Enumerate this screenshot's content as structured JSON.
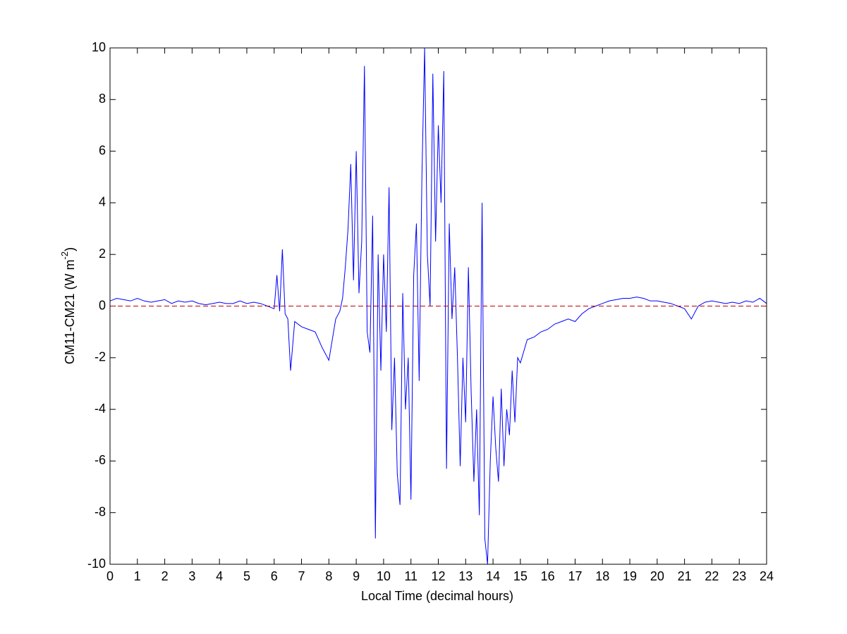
{
  "chart_data": {
    "type": "line",
    "xlabel": "Local Time (decimal hours)",
    "ylabel": {
      "text": "CM11-CM21 (W m",
      "superscript": "-2",
      "suffix": ")"
    },
    "xlim": [
      0,
      24
    ],
    "ylim": [
      -10,
      10
    ],
    "xticks": [
      0,
      1,
      2,
      3,
      4,
      5,
      6,
      7,
      8,
      9,
      10,
      11,
      12,
      13,
      14,
      15,
      16,
      17,
      18,
      19,
      20,
      21,
      22,
      23,
      24
    ],
    "yticks": [
      -10,
      -8,
      -6,
      -4,
      -2,
      0,
      2,
      4,
      6,
      8,
      10
    ],
    "reference_line": {
      "value": 0,
      "color": "#c00000",
      "style": "dashed"
    },
    "x": [
      0,
      0.25,
      0.5,
      0.75,
      1,
      1.25,
      1.5,
      1.75,
      2,
      2.25,
      2.5,
      2.75,
      3,
      3.25,
      3.5,
      3.75,
      4,
      4.25,
      4.5,
      4.75,
      5,
      5.25,
      5.5,
      5.75,
      6,
      6.1,
      6.2,
      6.3,
      6.4,
      6.5,
      6.6,
      6.75,
      7,
      7.25,
      7.5,
      7.75,
      8,
      8.25,
      8.4,
      8.5,
      8.6,
      8.7,
      8.8,
      8.9,
      9.0,
      9.1,
      9.2,
      9.3,
      9.4,
      9.5,
      9.6,
      9.7,
      9.8,
      9.9,
      10.0,
      10.1,
      10.2,
      10.3,
      10.4,
      10.5,
      10.6,
      10.7,
      10.8,
      10.9,
      11.0,
      11.1,
      11.2,
      11.3,
      11.4,
      11.5,
      11.6,
      11.7,
      11.8,
      11.9,
      12.0,
      12.1,
      12.2,
      12.3,
      12.4,
      12.5,
      12.6,
      12.7,
      12.8,
      12.9,
      13.0,
      13.1,
      13.2,
      13.3,
      13.4,
      13.5,
      13.6,
      13.7,
      13.8,
      13.9,
      14.0,
      14.1,
      14.2,
      14.3,
      14.4,
      14.5,
      14.6,
      14.7,
      14.8,
      14.9,
      15.0,
      15.25,
      15.5,
      15.75,
      16,
      16.25,
      16.5,
      16.75,
      17,
      17.25,
      17.5,
      17.75,
      18,
      18.25,
      18.5,
      18.75,
      19,
      19.25,
      19.5,
      19.75,
      20,
      20.25,
      20.5,
      20.75,
      21,
      21.25,
      21.5,
      21.75,
      22,
      22.25,
      22.5,
      22.75,
      23,
      23.25,
      23.5,
      23.75,
      24
    ],
    "series": [
      {
        "color": "#0000ff",
        "values": [
          0.2,
          0.3,
          0.25,
          0.2,
          0.3,
          0.2,
          0.15,
          0.2,
          0.25,
          0.1,
          0.2,
          0.15,
          0.2,
          0.1,
          0.05,
          0.1,
          0.15,
          0.1,
          0.1,
          0.2,
          0.1,
          0.15,
          0.1,
          0,
          -0.1,
          1.2,
          -0.2,
          2.2,
          -0.3,
          -0.5,
          -2.5,
          -0.6,
          -0.8,
          -0.9,
          -1.0,
          -1.6,
          -2.1,
          -0.5,
          -0.2,
          0.3,
          1.5,
          3,
          5.5,
          1,
          6,
          0.5,
          2.5,
          9.3,
          -1,
          -1.8,
          3.5,
          -9,
          2,
          -2.5,
          2,
          -1,
          4.6,
          -4.8,
          -2,
          -6.5,
          -7.7,
          0.5,
          -4,
          -2,
          -7.5,
          1.2,
          3.2,
          -2.9,
          5,
          10,
          2,
          0,
          9,
          2.5,
          7,
          4,
          9.1,
          -6.3,
          3.2,
          -0.5,
          1.5,
          -2,
          -6.2,
          -2,
          -4.5,
          1.5,
          -3.3,
          -6.8,
          -4,
          -8.1,
          4,
          -9,
          -10,
          -6,
          -3.5,
          -5.5,
          -6.8,
          -3.2,
          -6.2,
          -4,
          -5,
          -2.5,
          -4.5,
          -2,
          -2.2,
          -1.3,
          -1.2,
          -1.0,
          -0.9,
          -0.7,
          -0.6,
          -0.5,
          -0.6,
          -0.3,
          -0.1,
          0,
          0.1,
          0.2,
          0.25,
          0.3,
          0.3,
          0.35,
          0.3,
          0.2,
          0.2,
          0.15,
          0.1,
          0,
          -0.1,
          -0.5,
          0,
          0.15,
          0.2,
          0.15,
          0.1,
          0.15,
          0.1,
          0.2,
          0.15,
          0.3,
          0.1
        ]
      }
    ]
  }
}
